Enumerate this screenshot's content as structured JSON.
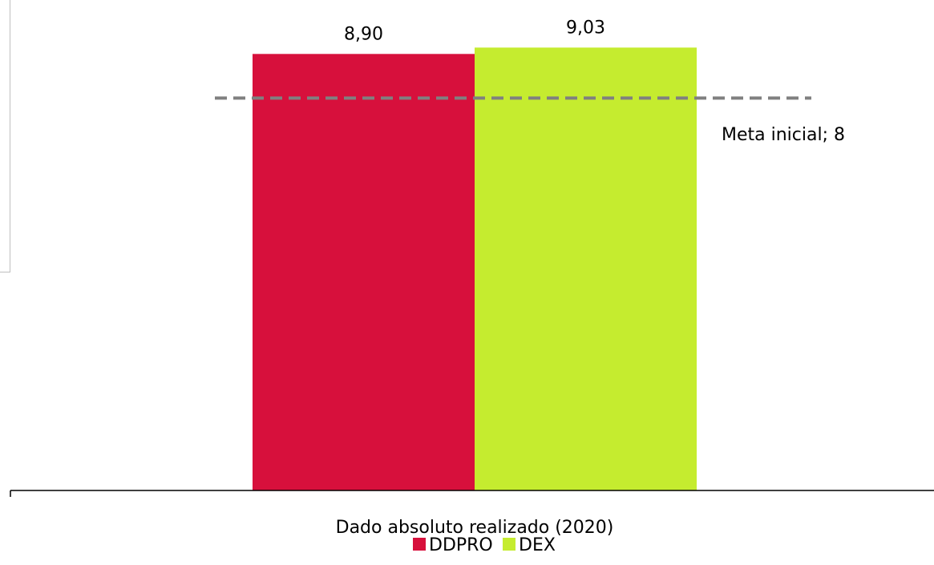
{
  "chart_data": {
    "type": "bar",
    "categories": [
      "Dado absoluto realizado (2020)"
    ],
    "series": [
      {
        "name": "DDPRO",
        "values": [
          8.9
        ],
        "value_label": "8,90",
        "color": "#d7103c"
      },
      {
        "name": "DEX",
        "values": [
          9.03
        ],
        "value_label": "9,03",
        "color": "#c5ec2f"
      }
    ],
    "reference_line": {
      "label": "Meta inicial; 8",
      "value": 8,
      "color": "#808080",
      "style": "dashed"
    },
    "ylim": [
      0,
      10.0
    ],
    "y_axis_visible": false,
    "grid": false,
    "legend_position": "bottom",
    "category_label": "Dado absoluto realizado (2020)"
  }
}
